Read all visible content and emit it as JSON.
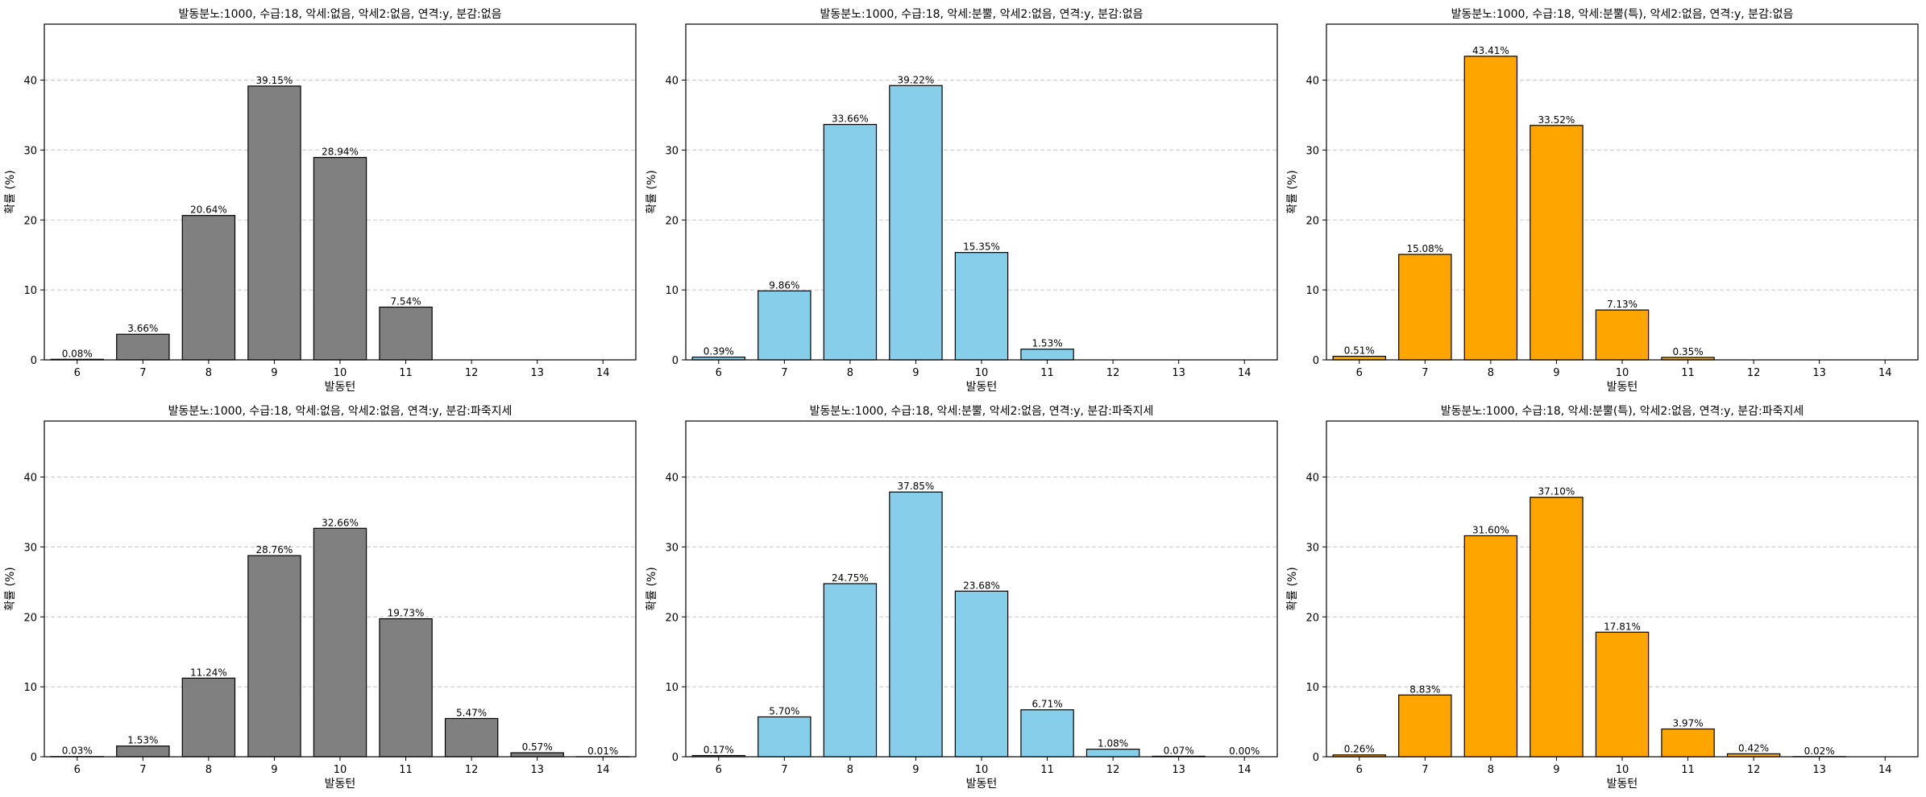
{
  "colors": {
    "gray": "#808080",
    "skyblue": "#87CEEB",
    "orange": "#FFA500",
    "edge": "#000000",
    "grid": "#c8c8c8"
  },
  "chart_data": [
    {
      "type": "bar",
      "title": "발동분노:1000, 수급:18, 악세:없음, 악세2:없음, 연격:y, 분감:없음",
      "xlabel": "발동턴",
      "ylabel": "확률 (%)",
      "categories": [
        "6",
        "7",
        "8",
        "9",
        "10",
        "11",
        "12",
        "13",
        "14"
      ],
      "values": [
        0.08,
        3.66,
        20.64,
        39.15,
        28.94,
        7.54,
        0,
        0,
        0
      ],
      "labels": [
        "0.08%",
        "3.66%",
        "20.64%",
        "39.15%",
        "28.94%",
        "7.54%",
        "",
        "",
        ""
      ],
      "ylim": [
        0,
        48
      ],
      "yticks": [
        0,
        10,
        20,
        30,
        40
      ],
      "color": "gray",
      "grid": "y-dashed"
    },
    {
      "type": "bar",
      "title": "발동분노:1000, 수급:18, 악세:분뿔, 악세2:없음, 연격:y, 분감:없음",
      "xlabel": "발동턴",
      "ylabel": "확률 (%)",
      "categories": [
        "6",
        "7",
        "8",
        "9",
        "10",
        "11",
        "12",
        "13",
        "14"
      ],
      "values": [
        0.39,
        9.86,
        33.66,
        39.22,
        15.35,
        1.53,
        0,
        0,
        0
      ],
      "labels": [
        "0.39%",
        "9.86%",
        "33.66%",
        "39.22%",
        "15.35%",
        "1.53%",
        "",
        "",
        ""
      ],
      "ylim": [
        0,
        48
      ],
      "yticks": [
        0,
        10,
        20,
        30,
        40
      ],
      "color": "skyblue",
      "grid": "y-dashed"
    },
    {
      "type": "bar",
      "title": "발동분노:1000, 수급:18, 악세:분뿔(특), 악세2:없음, 연격:y, 분감:없음",
      "xlabel": "발동턴",
      "ylabel": "확률 (%)",
      "categories": [
        "6",
        "7",
        "8",
        "9",
        "10",
        "11",
        "12",
        "13",
        "14"
      ],
      "values": [
        0.51,
        15.08,
        43.41,
        33.52,
        7.13,
        0.35,
        0,
        0,
        0
      ],
      "labels": [
        "0.51%",
        "15.08%",
        "43.41%",
        "33.52%",
        "7.13%",
        "0.35%",
        "",
        "",
        ""
      ],
      "ylim": [
        0,
        48
      ],
      "yticks": [
        0,
        10,
        20,
        30,
        40
      ],
      "color": "orange",
      "grid": "y-dashed"
    },
    {
      "type": "bar",
      "title": "발동분노:1000, 수급:18, 악세:없음, 악세2:없음, 연격:y, 분감:파죽지세",
      "xlabel": "발동턴",
      "ylabel": "확률 (%)",
      "categories": [
        "6",
        "7",
        "8",
        "9",
        "10",
        "11",
        "12",
        "13",
        "14"
      ],
      "values": [
        0.03,
        1.53,
        11.24,
        28.76,
        32.66,
        19.73,
        5.47,
        0.57,
        0.01
      ],
      "labels": [
        "0.03%",
        "1.53%",
        "11.24%",
        "28.76%",
        "32.66%",
        "19.73%",
        "5.47%",
        "0.57%",
        "0.01%"
      ],
      "ylim": [
        0,
        48
      ],
      "yticks": [
        0,
        10,
        20,
        30,
        40
      ],
      "color": "gray",
      "grid": "y-dashed"
    },
    {
      "type": "bar",
      "title": "발동분노:1000, 수급:18, 악세:분뿔, 악세2:없음, 연격:y, 분감:파죽지세",
      "xlabel": "발동턴",
      "ylabel": "확률 (%)",
      "categories": [
        "6",
        "7",
        "8",
        "9",
        "10",
        "11",
        "12",
        "13",
        "14"
      ],
      "values": [
        0.17,
        5.7,
        24.75,
        37.85,
        23.68,
        6.71,
        1.08,
        0.07,
        0.0
      ],
      "labels": [
        "0.17%",
        "5.70%",
        "24.75%",
        "37.85%",
        "23.68%",
        "6.71%",
        "1.08%",
        "0.07%",
        "0.00%"
      ],
      "ylim": [
        0,
        48
      ],
      "yticks": [
        0,
        10,
        20,
        30,
        40
      ],
      "color": "skyblue",
      "grid": "y-dashed"
    },
    {
      "type": "bar",
      "title": "발동분노:1000, 수급:18, 악세:분뿔(특), 악세2:없음, 연격:y, 분감:파죽지세",
      "xlabel": "발동턴",
      "ylabel": "확률 (%)",
      "categories": [
        "6",
        "7",
        "8",
        "9",
        "10",
        "11",
        "12",
        "13",
        "14"
      ],
      "values": [
        0.26,
        8.83,
        31.6,
        37.1,
        17.81,
        3.97,
        0.42,
        0.02,
        0
      ],
      "labels": [
        "0.26%",
        "8.83%",
        "31.60%",
        "37.10%",
        "17.81%",
        "3.97%",
        "0.42%",
        "0.02%",
        ""
      ],
      "ylim": [
        0,
        48
      ],
      "yticks": [
        0,
        10,
        20,
        30,
        40
      ],
      "color": "orange",
      "grid": "y-dashed"
    }
  ]
}
